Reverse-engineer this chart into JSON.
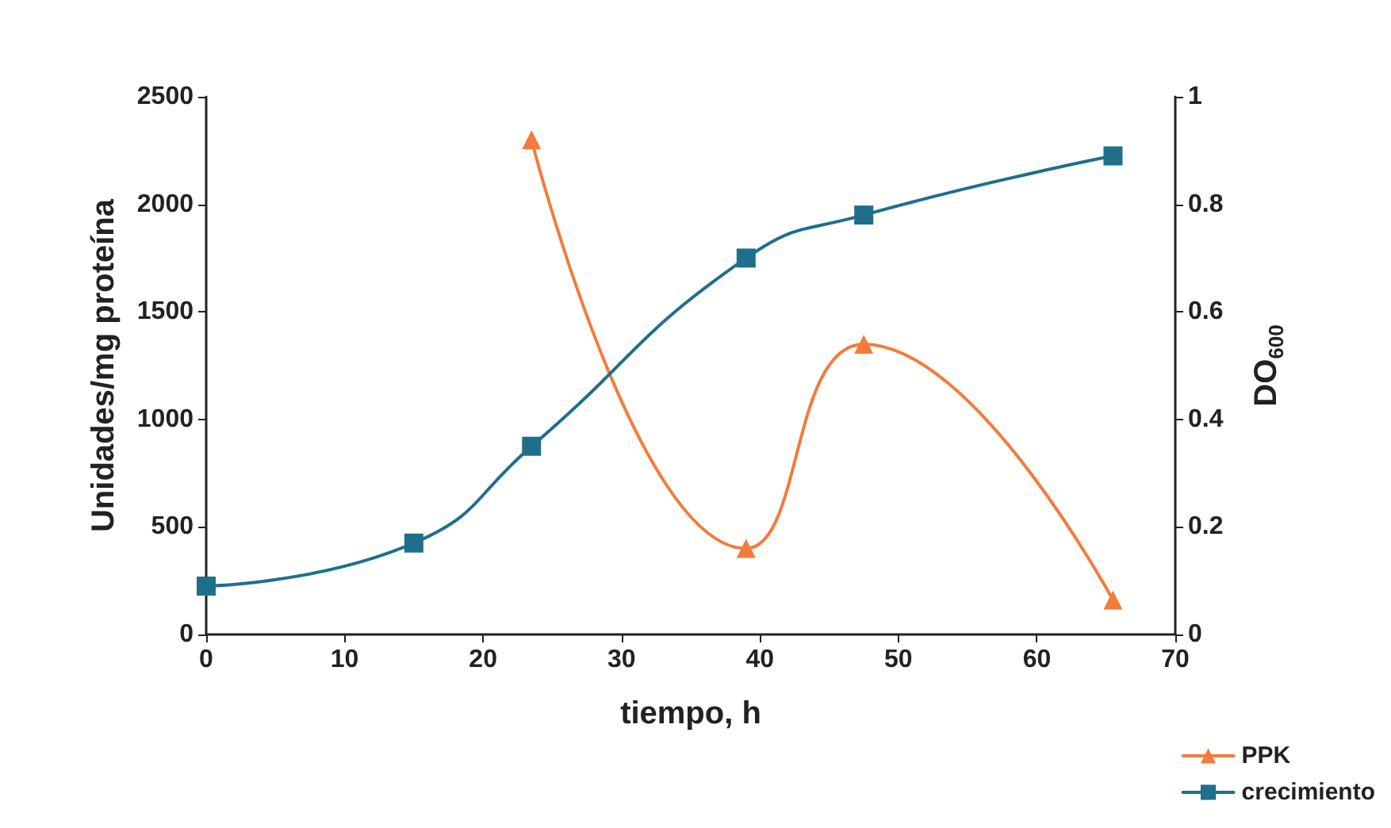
{
  "chart_data": {
    "type": "line",
    "xlabel": "tiempo, h",
    "ylabel": "Unidades/mg proteína",
    "y2label": "DO$_{600}$",
    "xlim": [
      0,
      70
    ],
    "xticks": [
      0,
      10,
      20,
      30,
      40,
      50,
      60,
      70
    ],
    "ylim": [
      0,
      2500
    ],
    "yticks": [
      0,
      500,
      1000,
      1500,
      2000,
      2500
    ],
    "y2lim": [
      0,
      1
    ],
    "y2ticks": [
      0,
      0.2,
      0.4,
      0.6,
      0.8,
      1
    ],
    "grid": false,
    "legend": "bottom right",
    "line_style": "solid",
    "series": [
      {
        "name": "PPK",
        "color": "#f47b3b",
        "marker": "triangle",
        "x": [
          23.5,
          39,
          47.5,
          65.5
        ],
        "values": [
          2300,
          400,
          1350,
          160
        ]
      },
      {
        "name": "crecimiento",
        "color": "#1f6f8b",
        "marker": "square",
        "axis": "y2",
        "x": [
          0,
          15,
          23.5,
          39,
          47.5,
          65.5
        ],
        "values": [
          0.09,
          0.17,
          0.35,
          0.7,
          0.78,
          0.89
        ]
      }
    ]
  }
}
